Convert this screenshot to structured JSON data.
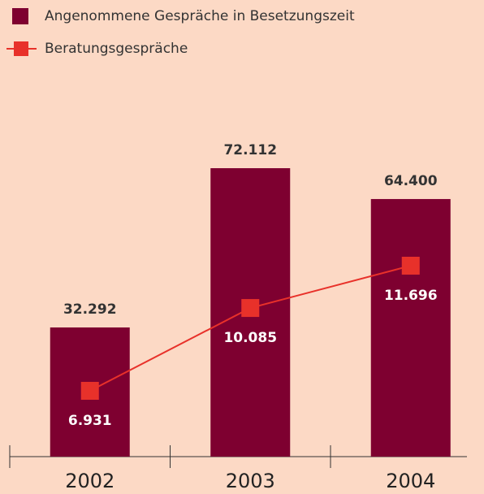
{
  "chart_data": {
    "type": "bar",
    "categories": [
      "2002",
      "2003",
      "2004"
    ],
    "series": [
      {
        "name": "Angenommene Gespräche in Besetzungszeit",
        "type": "bar",
        "color": "#7e0030",
        "values": [
          32292,
          72112,
          64400
        ],
        "value_labels": [
          "32.292",
          "72.112",
          "64.400"
        ]
      },
      {
        "name": "Beratungsgespräche",
        "type": "line",
        "color": "#e8312a",
        "values": [
          6931,
          10085,
          11696
        ],
        "value_labels": [
          "6.931",
          "10.085",
          "11.696"
        ]
      }
    ]
  }
}
